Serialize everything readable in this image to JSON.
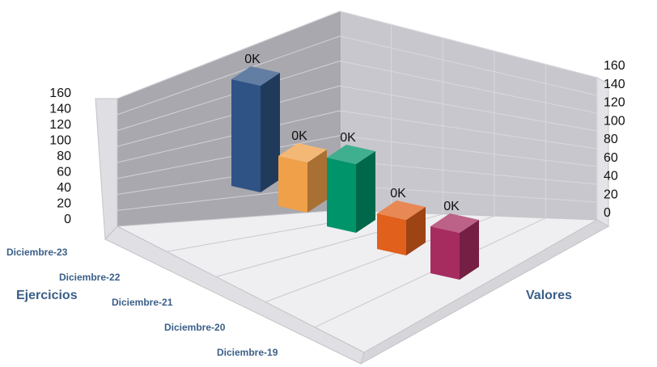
{
  "chart_data": {
    "type": "bar",
    "variant": "3d-columns",
    "title": "",
    "categories": [
      "Diciembre-23",
      "Diciembre-22",
      "Diciembre-21",
      "Diciembre-20",
      "Diciembre-19"
    ],
    "values": [
      0,
      0,
      0,
      0,
      0
    ],
    "data_labels": [
      "0K",
      "0K",
      "0K",
      "0K",
      "0K"
    ],
    "bar_colors": [
      "#2e5384",
      "#f0a048",
      "#00946a",
      "#e0601c",
      "#a62c60"
    ],
    "xlabel": "Ejercicios",
    "ylabel": "Valores",
    "yticks": [
      "0",
      "20",
      "40",
      "60",
      "80",
      "100",
      "120",
      "140",
      "160"
    ],
    "ylim": [
      0,
      160
    ],
    "grid": true,
    "legend": "none"
  }
}
